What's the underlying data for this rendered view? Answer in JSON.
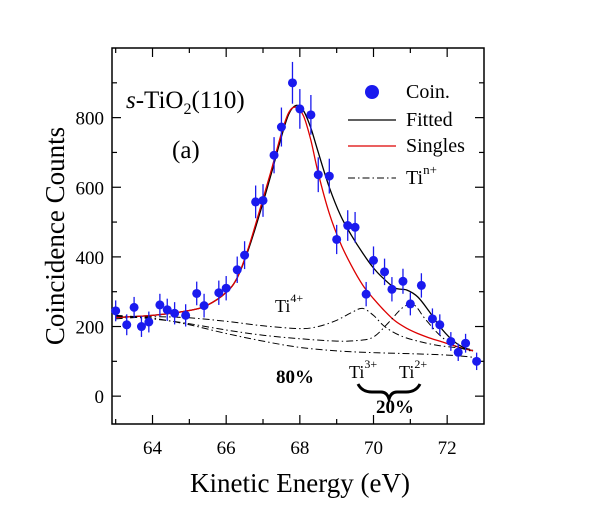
{
  "chart_data": {
    "type": "scatter",
    "xlabel": "Kinetic Energy (eV)",
    "ylabel": "Coincidence Counts",
    "xlim": [
      62.9,
      73.0
    ],
    "ylim": [
      -80,
      1000
    ],
    "x_ticks": [
      64,
      66,
      68,
      70,
      72
    ],
    "y_ticks": [
      0,
      200,
      400,
      600,
      800
    ],
    "panel_title": "(a)",
    "sample_label": {
      "italic": "s",
      "base": "-TiO",
      "sub": "2",
      "tail": "(110)"
    },
    "legend": {
      "position": "top-right",
      "items": [
        {
          "label": "Coin.",
          "style": "marker",
          "color": "#1a1aee"
        },
        {
          "label": "Fitted",
          "style": "solid",
          "color": "#000000"
        },
        {
          "label": "Singles",
          "style": "solid",
          "color": "#dd0000"
        },
        {
          "label": "Ti",
          "sup": "n+",
          "style": "dashdot",
          "color": "#000000"
        }
      ]
    },
    "annotations": {
      "ti4": {
        "base": "Ti",
        "sup": "4+"
      },
      "ti3": {
        "base": "Ti",
        "sup": "3+"
      },
      "ti2": {
        "base": "Ti",
        "sup": "2+"
      },
      "pct80": "80%",
      "pct20": "20%"
    },
    "series": [
      {
        "name": "Coin.",
        "style": "marker",
        "color": "#1a1aee",
        "points": [
          {
            "x": 63.0,
            "y": 245,
            "err": 30
          },
          {
            "x": 63.3,
            "y": 205,
            "err": 30
          },
          {
            "x": 63.5,
            "y": 255,
            "err": 30
          },
          {
            "x": 63.7,
            "y": 200,
            "err": 30
          },
          {
            "x": 63.9,
            "y": 213,
            "err": 30
          },
          {
            "x": 64.2,
            "y": 262,
            "err": 32
          },
          {
            "x": 64.4,
            "y": 248,
            "err": 32
          },
          {
            "x": 64.6,
            "y": 238,
            "err": 32
          },
          {
            "x": 64.9,
            "y": 232,
            "err": 32
          },
          {
            "x": 65.2,
            "y": 295,
            "err": 34
          },
          {
            "x": 65.4,
            "y": 260,
            "err": 34
          },
          {
            "x": 65.8,
            "y": 297,
            "err": 35
          },
          {
            "x": 66.0,
            "y": 310,
            "err": 35
          },
          {
            "x": 66.3,
            "y": 363,
            "err": 38
          },
          {
            "x": 66.5,
            "y": 405,
            "err": 40
          },
          {
            "x": 66.8,
            "y": 558,
            "err": 47
          },
          {
            "x": 67.0,
            "y": 562,
            "err": 47
          },
          {
            "x": 67.3,
            "y": 692,
            "err": 52
          },
          {
            "x": 67.5,
            "y": 773,
            "err": 56
          },
          {
            "x": 67.8,
            "y": 900,
            "err": 60
          },
          {
            "x": 68.0,
            "y": 825,
            "err": 57
          },
          {
            "x": 68.3,
            "y": 808,
            "err": 57
          },
          {
            "x": 68.5,
            "y": 636,
            "err": 50
          },
          {
            "x": 68.8,
            "y": 632,
            "err": 50
          },
          {
            "x": 69.0,
            "y": 450,
            "err": 42
          },
          {
            "x": 69.3,
            "y": 490,
            "err": 44
          },
          {
            "x": 69.5,
            "y": 485,
            "err": 44
          },
          {
            "x": 69.8,
            "y": 293,
            "err": 35
          },
          {
            "x": 70.0,
            "y": 390,
            "err": 40
          },
          {
            "x": 70.3,
            "y": 357,
            "err": 38
          },
          {
            "x": 70.5,
            "y": 307,
            "err": 35
          },
          {
            "x": 70.8,
            "y": 330,
            "err": 36
          },
          {
            "x": 71.0,
            "y": 265,
            "err": 33
          },
          {
            "x": 71.3,
            "y": 318,
            "err": 35
          },
          {
            "x": 71.6,
            "y": 222,
            "err": 30
          },
          {
            "x": 71.8,
            "y": 205,
            "err": 30
          },
          {
            "x": 72.1,
            "y": 157,
            "err": 27
          },
          {
            "x": 72.3,
            "y": 126,
            "err": 25
          },
          {
            "x": 72.5,
            "y": 152,
            "err": 27
          },
          {
            "x": 72.8,
            "y": 100,
            "err": 25
          }
        ]
      },
      {
        "name": "Fitted",
        "style": "solid",
        "color": "#000000",
        "points": [
          {
            "x": 63.0,
            "y": 226
          },
          {
            "x": 64.0,
            "y": 232
          },
          {
            "x": 65.0,
            "y": 246
          },
          {
            "x": 65.5,
            "y": 262
          },
          {
            "x": 66.0,
            "y": 298
          },
          {
            "x": 66.3,
            "y": 340
          },
          {
            "x": 66.6,
            "y": 420
          },
          {
            "x": 66.9,
            "y": 520
          },
          {
            "x": 67.2,
            "y": 630
          },
          {
            "x": 67.5,
            "y": 745
          },
          {
            "x": 67.7,
            "y": 810
          },
          {
            "x": 67.9,
            "y": 835
          },
          {
            "x": 68.1,
            "y": 820
          },
          {
            "x": 68.3,
            "y": 770
          },
          {
            "x": 68.5,
            "y": 700
          },
          {
            "x": 68.8,
            "y": 600
          },
          {
            "x": 69.1,
            "y": 520
          },
          {
            "x": 69.4,
            "y": 462
          },
          {
            "x": 69.7,
            "y": 412
          },
          {
            "x": 70.0,
            "y": 368
          },
          {
            "x": 70.3,
            "y": 335
          },
          {
            "x": 70.6,
            "y": 310
          },
          {
            "x": 70.9,
            "y": 305
          },
          {
            "x": 71.2,
            "y": 285
          },
          {
            "x": 71.5,
            "y": 245
          },
          {
            "x": 71.8,
            "y": 200
          },
          {
            "x": 72.1,
            "y": 165
          },
          {
            "x": 72.4,
            "y": 142
          },
          {
            "x": 72.7,
            "y": 130
          }
        ]
      },
      {
        "name": "Singles",
        "style": "solid",
        "color": "#dd0000",
        "points": [
          {
            "x": 63.0,
            "y": 226
          },
          {
            "x": 64.0,
            "y": 232
          },
          {
            "x": 65.0,
            "y": 246
          },
          {
            "x": 65.5,
            "y": 262
          },
          {
            "x": 66.0,
            "y": 298
          },
          {
            "x": 66.3,
            "y": 340
          },
          {
            "x": 66.6,
            "y": 425
          },
          {
            "x": 66.9,
            "y": 530
          },
          {
            "x": 67.2,
            "y": 640
          },
          {
            "x": 67.5,
            "y": 755
          },
          {
            "x": 67.7,
            "y": 815
          },
          {
            "x": 67.9,
            "y": 830
          },
          {
            "x": 68.1,
            "y": 805
          },
          {
            "x": 68.3,
            "y": 735
          },
          {
            "x": 68.5,
            "y": 640
          },
          {
            "x": 68.8,
            "y": 525
          },
          {
            "x": 69.1,
            "y": 440
          },
          {
            "x": 69.4,
            "y": 375
          },
          {
            "x": 69.7,
            "y": 320
          },
          {
            "x": 70.0,
            "y": 280
          },
          {
            "x": 70.3,
            "y": 245
          },
          {
            "x": 70.6,
            "y": 215
          },
          {
            "x": 70.9,
            "y": 195
          },
          {
            "x": 71.2,
            "y": 180
          },
          {
            "x": 71.5,
            "y": 168
          },
          {
            "x": 71.8,
            "y": 158
          },
          {
            "x": 72.1,
            "y": 148
          },
          {
            "x": 72.4,
            "y": 138
          },
          {
            "x": 72.7,
            "y": 130
          }
        ]
      },
      {
        "name": "Ti4+ component",
        "style": "dashdot",
        "color": "#000000",
        "points": [
          {
            "x": 63.0,
            "y": 222
          },
          {
            "x": 64.0,
            "y": 228
          },
          {
            "x": 65.0,
            "y": 225
          },
          {
            "x": 66.0,
            "y": 215
          },
          {
            "x": 67.0,
            "y": 202
          },
          {
            "x": 68.0,
            "y": 194
          },
          {
            "x": 68.5,
            "y": 200
          },
          {
            "x": 69.0,
            "y": 218
          },
          {
            "x": 69.4,
            "y": 240
          },
          {
            "x": 69.7,
            "y": 252
          },
          {
            "x": 70.0,
            "y": 232
          },
          {
            "x": 70.3,
            "y": 200
          },
          {
            "x": 70.7,
            "y": 175
          },
          {
            "x": 71.2,
            "y": 158
          },
          {
            "x": 71.8,
            "y": 145
          },
          {
            "x": 72.4,
            "y": 138
          },
          {
            "x": 72.7,
            "y": 134
          }
        ]
      },
      {
        "name": "Ti3+ component",
        "style": "dashdot",
        "color": "#000000",
        "points": [
          {
            "x": 63.0,
            "y": 230
          },
          {
            "x": 64.0,
            "y": 222
          },
          {
            "x": 65.0,
            "y": 208
          },
          {
            "x": 66.0,
            "y": 190
          },
          {
            "x": 67.0,
            "y": 175
          },
          {
            "x": 68.0,
            "y": 165
          },
          {
            "x": 69.0,
            "y": 158
          },
          {
            "x": 69.6,
            "y": 160
          },
          {
            "x": 70.0,
            "y": 170
          },
          {
            "x": 70.4,
            "y": 210
          },
          {
            "x": 70.8,
            "y": 255
          },
          {
            "x": 71.1,
            "y": 262
          },
          {
            "x": 71.4,
            "y": 222
          },
          {
            "x": 71.8,
            "y": 175
          },
          {
            "x": 72.2,
            "y": 145
          },
          {
            "x": 72.7,
            "y": 128
          }
        ]
      },
      {
        "name": "Ti2+ component",
        "style": "dashdot",
        "color": "#000000",
        "points": [
          {
            "x": 63.0,
            "y": 232
          },
          {
            "x": 64.0,
            "y": 224
          },
          {
            "x": 65.0,
            "y": 205
          },
          {
            "x": 66.0,
            "y": 180
          },
          {
            "x": 67.0,
            "y": 158
          },
          {
            "x": 68.0,
            "y": 140
          },
          {
            "x": 69.0,
            "y": 130
          },
          {
            "x": 70.0,
            "y": 125
          },
          {
            "x": 71.0,
            "y": 122
          },
          {
            "x": 72.0,
            "y": 118
          },
          {
            "x": 72.7,
            "y": 112
          }
        ]
      }
    ]
  }
}
